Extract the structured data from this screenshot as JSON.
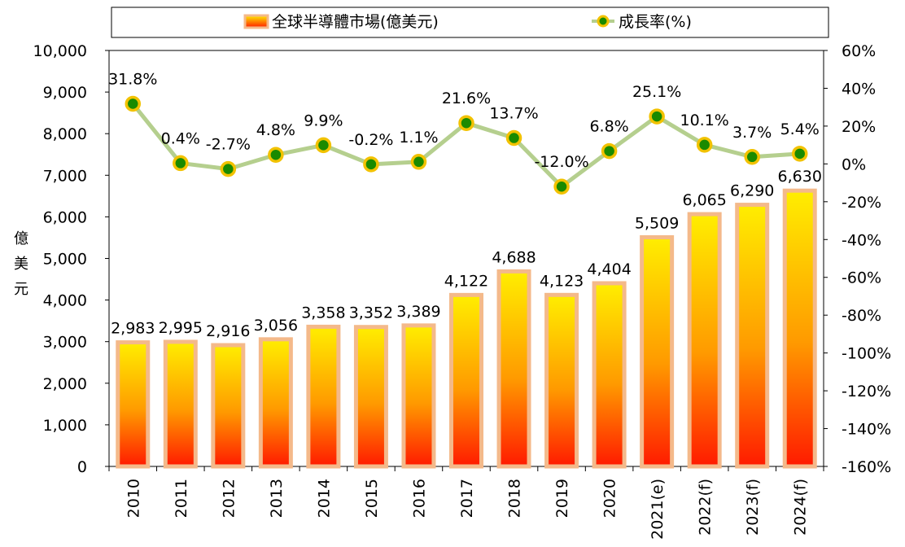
{
  "chart_data": {
    "type": "bar+line",
    "categories": [
      "2010",
      "2011",
      "2012",
      "2013",
      "2014",
      "2015",
      "2016",
      "2017",
      "2018",
      "2019",
      "2020",
      "2021(e)",
      "2022(f)",
      "2023(f)",
      "2024(f)"
    ],
    "series": [
      {
        "name": "全球半導體市場(億美元)",
        "type": "bar",
        "axis": "left",
        "values": [
          2983,
          2995,
          2916,
          3056,
          3358,
          3352,
          3389,
          4122,
          4688,
          4123,
          4404,
          5509,
          6065,
          6290,
          6630
        ],
        "labels": [
          "2,983",
          "2,995",
          "2,916",
          "3,056",
          "3,358",
          "3,352",
          "3,389",
          "4,122",
          "4,688",
          "4,123",
          "4,404",
          "5,509",
          "6,065",
          "6,290",
          "6,630"
        ]
      },
      {
        "name": "成長率(%)",
        "type": "line",
        "axis": "right",
        "values": [
          31.8,
          0.4,
          -2.7,
          4.8,
          9.9,
          -0.2,
          1.1,
          21.6,
          13.7,
          -12.0,
          6.8,
          25.1,
          10.1,
          3.7,
          5.4
        ],
        "labels": [
          "31.8%",
          "0.4%",
          "-2.7%",
          "4.8%",
          "9.9%",
          "-0.2%",
          "1.1%",
          "21.6%",
          "13.7%",
          "-12.0%",
          "6.8%",
          "25.1%",
          "10.1%",
          "3.7%",
          "5.4%"
        ]
      }
    ],
    "y_left": {
      "label_chars": [
        "億",
        "美",
        "元"
      ],
      "range": [
        0,
        10000
      ],
      "ticks": [
        0,
        1000,
        2000,
        3000,
        4000,
        5000,
        6000,
        7000,
        8000,
        9000,
        10000
      ],
      "tick_labels": [
        "0",
        "1,000",
        "2,000",
        "3,000",
        "4,000",
        "5,000",
        "6,000",
        "7,000",
        "8,000",
        "9,000",
        "10,000"
      ]
    },
    "y_right": {
      "range": [
        -160,
        60
      ],
      "ticks": [
        -160,
        -140,
        -120,
        -100,
        -80,
        -60,
        -40,
        -20,
        0,
        20,
        40,
        60
      ],
      "tick_labels": [
        "-160%",
        "-140%",
        "-120%",
        "-100%",
        "-80%",
        "-60%",
        "-40%",
        "-20%",
        "0%",
        "20%",
        "40%",
        "60%"
      ]
    },
    "legend": {
      "position": "top",
      "entries": [
        "全球半導體市場(億美元)",
        "成長率(%)"
      ]
    },
    "grid": false,
    "colors": {
      "bar_top": "#ffee00",
      "bar_bottom": "#ff1a00",
      "bar_border": "#f4b98a",
      "line": "#b5cf8e",
      "marker_fill": "#1a8a00",
      "marker_edge": "#f2c200"
    }
  }
}
